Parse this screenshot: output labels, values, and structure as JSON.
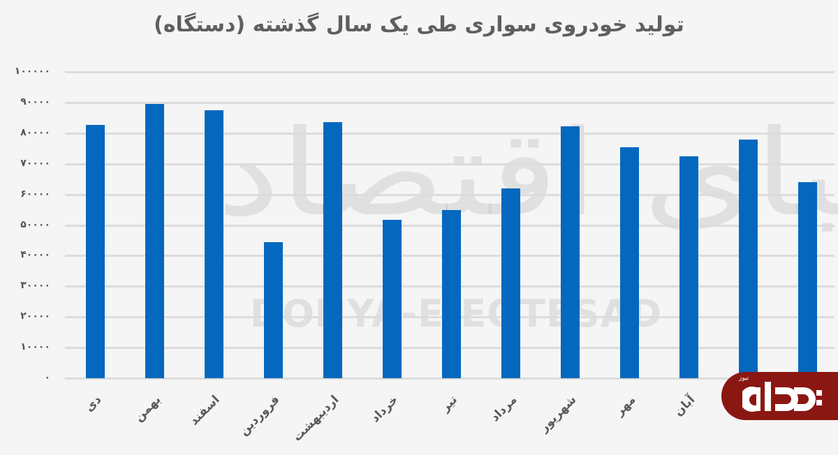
{
  "chart_data": {
    "type": "bar",
    "title": "تولید خودروی سواری طی یک سال گذشته (دستگاه)",
    "xlabel": "",
    "ylabel": "",
    "ylim": [
      0,
      100000
    ],
    "yticks": [
      "۰",
      "۱۰۰۰۰",
      "۲۰۰۰۰",
      "۳۰۰۰۰",
      "۴۰۰۰۰",
      "۵۰۰۰۰",
      "۶۰۰۰۰",
      "۷۰۰۰۰",
      "۸۰۰۰۰",
      "۹۰۰۰۰",
      "۱۰۰۰۰۰"
    ],
    "categories": [
      "دی",
      "بهمن",
      "اسفند",
      "فروردین",
      "اردیبهشت",
      "خرداد",
      "تیر",
      "مرداد",
      "شهریور",
      "مهر",
      "آبان",
      "",
      ""
    ],
    "values": [
      82600,
      89600,
      87500,
      44500,
      83600,
      51700,
      55000,
      62000,
      82300,
      75500,
      72500,
      78000,
      63900
    ],
    "bar_color": "#0468be",
    "grid": true,
    "legend": null
  },
  "watermark": {
    "persian": "دنیای اقتصاد",
    "english": "DONYA-E-EQTESAD"
  },
  "logo": {
    "main": "دادهـ",
    "small": "نیوز",
    "color": "#8b1713"
  }
}
